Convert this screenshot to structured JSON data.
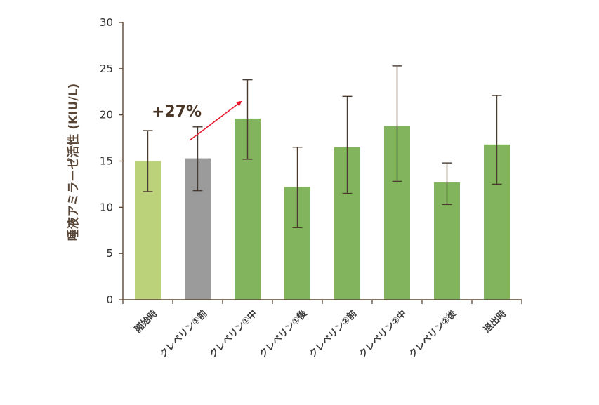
{
  "chart_data": {
    "type": "bar",
    "title": "",
    "xlabel": "",
    "ylabel": "唾液アミラーゼ活性 (KIU/L)",
    "ylim": [
      0,
      30
    ],
    "yticks": [
      0,
      5,
      10,
      15,
      20,
      25,
      30
    ],
    "grid": false,
    "categories": [
      "開始時",
      "クレペリン①前",
      "クレペリン①中",
      "クレペリン①後",
      "クレペリン②前",
      "クレペリン②中",
      "クレペリン②後",
      "退出時"
    ],
    "values": [
      15.0,
      15.3,
      19.6,
      12.2,
      16.5,
      18.8,
      12.7,
      16.8
    ],
    "error_low": [
      11.7,
      11.8,
      15.2,
      7.8,
      11.5,
      12.8,
      10.3,
      12.5
    ],
    "error_high": [
      18.3,
      18.7,
      23.8,
      16.5,
      22.0,
      25.3,
      14.8,
      22.1
    ],
    "bar_colors": [
      "#bbd27b",
      "#9b9b9b",
      "#82b45e",
      "#82b45e",
      "#82b45e",
      "#82b45e",
      "#82b45e",
      "#82b45e"
    ],
    "axis_color": "#5a4636",
    "error_bar_color": "#4a3a2e",
    "annotation": {
      "text": "+27%",
      "arrow_color": "#e8192c"
    }
  }
}
